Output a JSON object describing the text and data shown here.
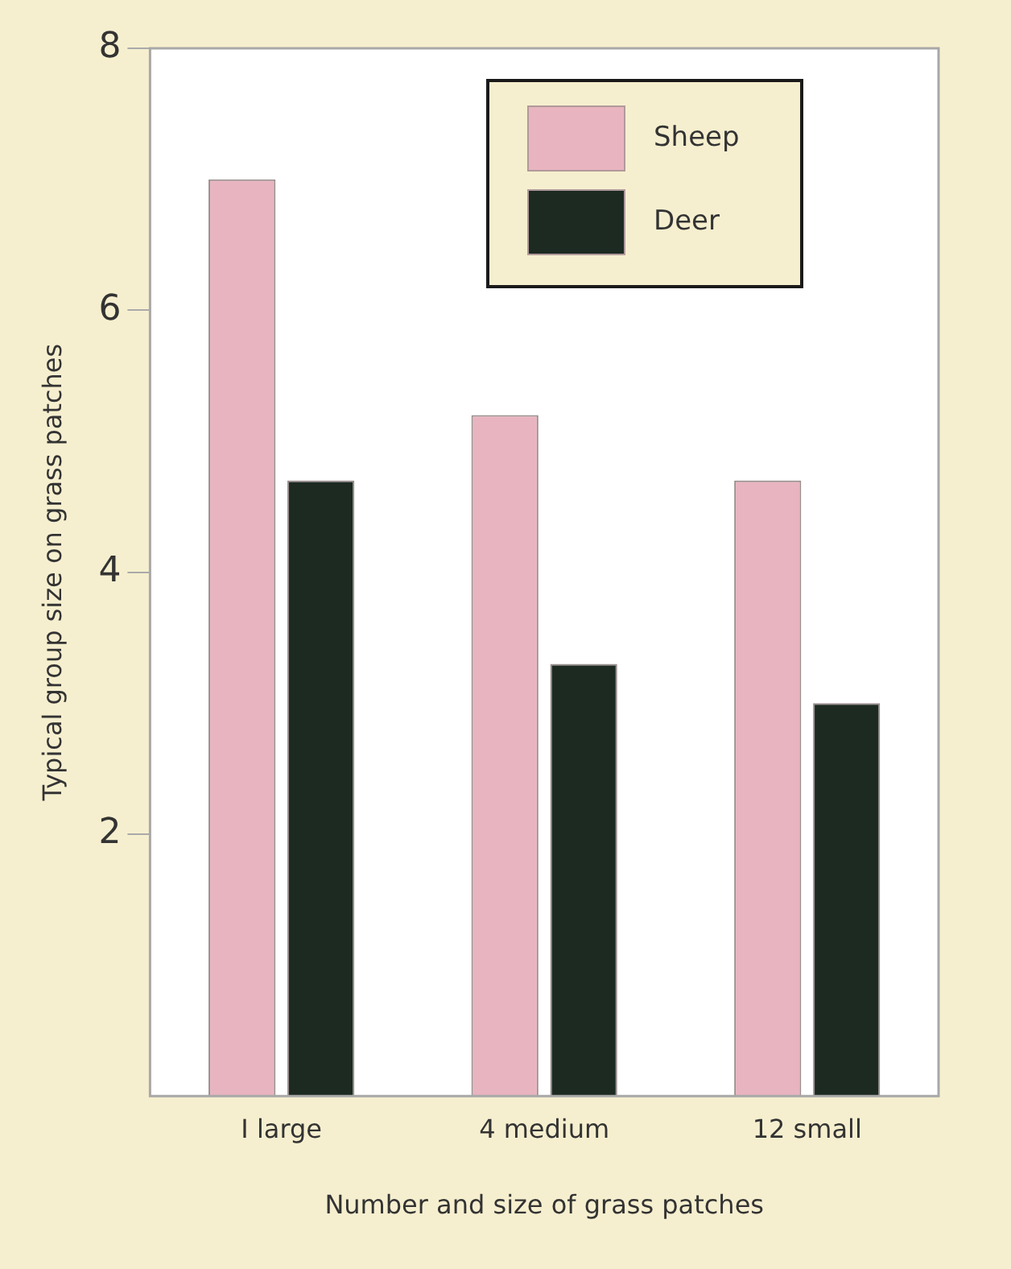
{
  "chart_data": {
    "type": "bar",
    "xlabel": "Number and size of grass patches",
    "ylabel": "Typical group size on grass patches",
    "categories": [
      "I large",
      "4 medium",
      "12 small"
    ],
    "series": [
      {
        "name": "Sheep",
        "color": "#e8b4bf",
        "values": [
          7.0,
          5.2,
          4.7
        ]
      },
      {
        "name": "Deer",
        "color": "#1c2a22",
        "values": [
          4.7,
          3.3,
          3.0
        ]
      }
    ],
    "ylim": [
      0,
      8
    ],
    "yticks": [
      2,
      4,
      6,
      8
    ],
    "grid": false,
    "legend": "top right"
  }
}
